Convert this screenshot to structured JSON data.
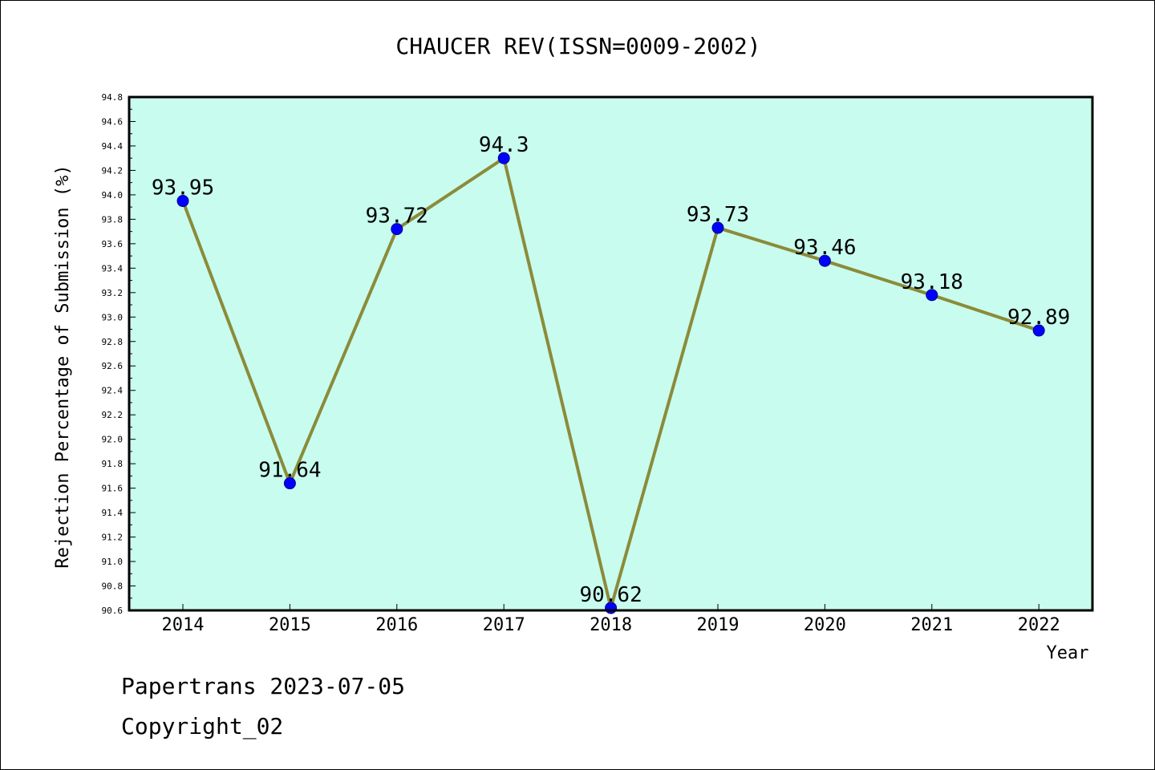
{
  "chart_data": {
    "type": "line",
    "title": "CHAUCER REV(ISSN=0009-2002)",
    "xlabel": "Year",
    "ylabel": "Rejection Percentage of Submission (%)",
    "categories": [
      "2014",
      "2015",
      "2016",
      "2017",
      "2018",
      "2019",
      "2020",
      "2021",
      "2022"
    ],
    "values": [
      93.95,
      91.64,
      93.72,
      94.3,
      90.62,
      93.73,
      93.46,
      93.18,
      92.89
    ],
    "data_labels": [
      "93.95",
      "91.64",
      "93.72",
      "94.3",
      "90.62",
      "93.73",
      "93.46",
      "93.18",
      "92.89"
    ],
    "ylim": [
      90.6,
      94.8
    ],
    "yticks": [
      "90.6",
      "90.8",
      "91.0",
      "91.2",
      "91.4",
      "91.6",
      "91.8",
      "92.0",
      "92.2",
      "92.4",
      "92.6",
      "92.8",
      "93.0",
      "93.2",
      "93.4",
      "93.6",
      "93.8",
      "94.0",
      "94.2",
      "94.4",
      "94.6",
      "94.8"
    ],
    "grid": false,
    "legend": "none",
    "colors": {
      "plot_background": "#c8fcee",
      "line": "#8b8b3a",
      "marker": "#0000ff"
    }
  },
  "footer": {
    "line1": "Papertrans 2023-07-05",
    "line2": "Copyright_02"
  }
}
